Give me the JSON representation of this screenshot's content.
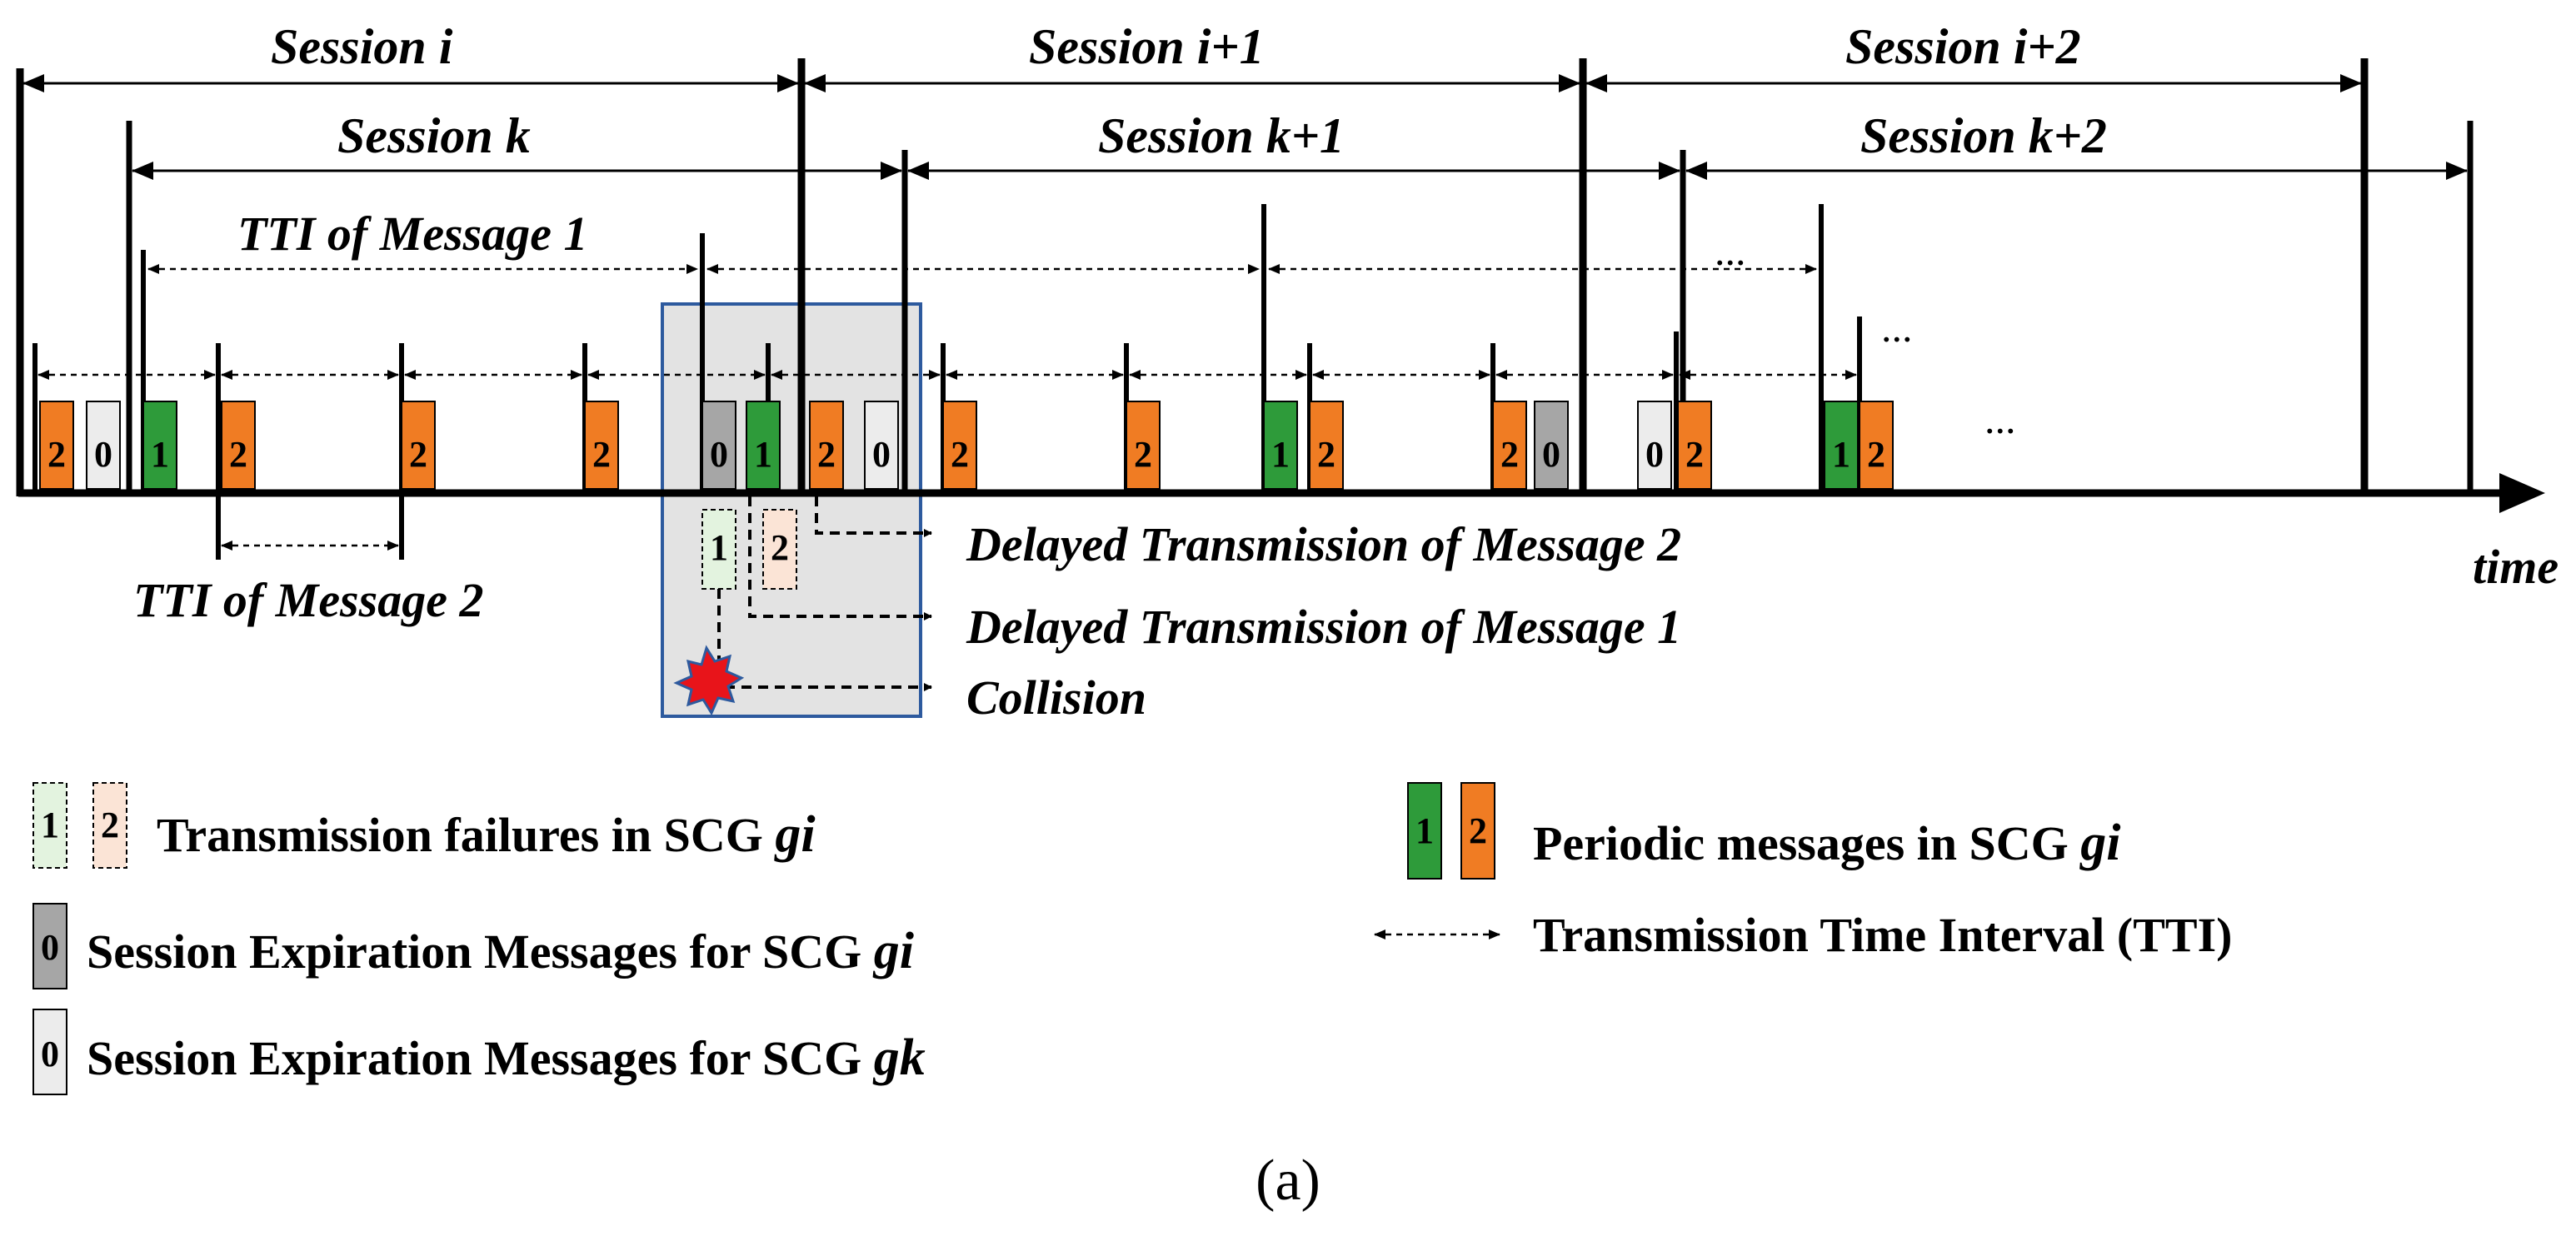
{
  "sessions_top": [
    {
      "label": "Session i"
    },
    {
      "label": "Session i+1"
    },
    {
      "label": "Session i+2"
    }
  ],
  "sessions_bottom": [
    {
      "label": "Session k"
    },
    {
      "label": "Session k+1"
    },
    {
      "label": "Session k+2"
    }
  ],
  "tti_message1_label": "TTI of Message 1",
  "tti_message2_label": "TTI of  Message 2",
  "ellipsis": "...",
  "time_label": "time",
  "annotations": {
    "delayed_2": "Delayed Transmission of Message 2",
    "delayed_1": "Delayed Transmission of Message 1",
    "collision": "Collision"
  },
  "message_numbers": {
    "expiration": "0",
    "msg1": "1",
    "msg2": "2"
  },
  "legend": {
    "failures": {
      "text": "Transmission failures in SCG ",
      "group": "gi"
    },
    "expiration_gi": {
      "text": "Session Expiration Messages for SCG ",
      "group": "gi"
    },
    "expiration_gk": {
      "text": "Session Expiration Messages for SCG ",
      "group": "gk"
    },
    "periodic": {
      "text": "Periodic messages in SCG ",
      "group": "gi"
    },
    "tti": {
      "text": "Transmission Time Interval (TTI)"
    }
  },
  "caption": "(a)",
  "colors": {
    "msg1": "#2e9b3a",
    "msg2": "#f07c23",
    "exp_gi": "#a6a6a6",
    "exp_gk": "#ececec",
    "fail1": "#e3f3df",
    "fail2": "#fbe4d6",
    "highlight": "#e3e3e3",
    "highlight_border": "#2d5a9e",
    "collision": "#e8141a"
  }
}
